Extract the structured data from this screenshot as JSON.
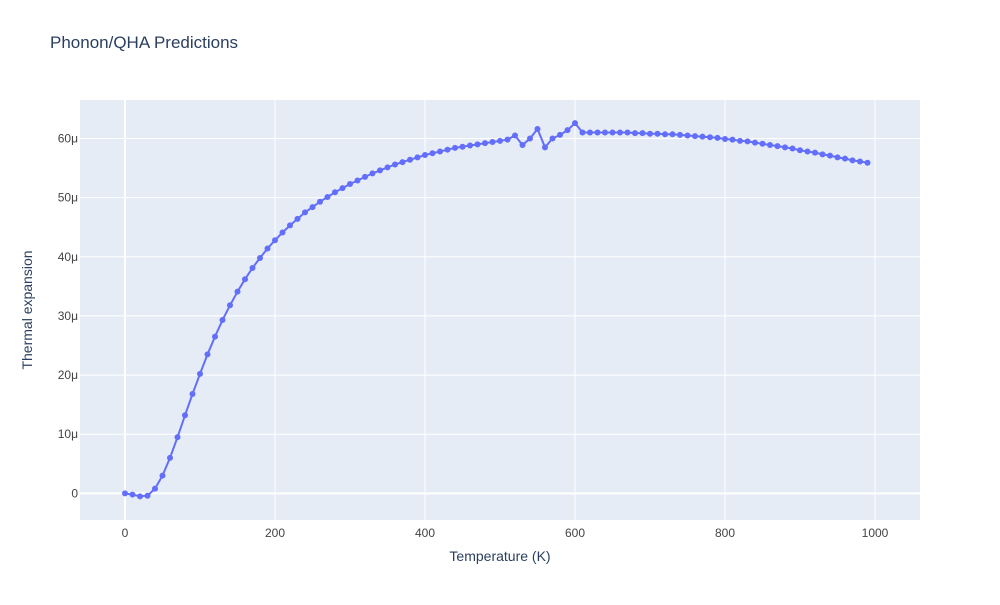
{
  "chart_data": {
    "type": "line",
    "title": "Phonon/QHA Predictions",
    "xlabel": "Temperature (K)",
    "ylabel": "Thermal expansion",
    "xlim": [
      -60,
      1060
    ],
    "ylim": [
      -4.5,
      66.5
    ],
    "x_ticks": [
      0,
      200,
      400,
      600,
      800,
      1000
    ],
    "x_tick_labels": [
      "0",
      "200",
      "400",
      "600",
      "800",
      "1000"
    ],
    "y_ticks": [
      0,
      10,
      20,
      30,
      40,
      50,
      60
    ],
    "y_tick_labels": [
      "0",
      "10μ",
      "20μ",
      "30μ",
      "40μ",
      "50μ",
      "60μ"
    ],
    "y_units": "μ (×1e-6)",
    "grid": true,
    "legend": "none",
    "colors": {
      "line": "#636efa",
      "plot_bg": "#e5ecf6",
      "grid": "#ffffff",
      "text": "#2a3f5f",
      "tick_text": "#444444"
    },
    "series": [
      {
        "x": [
          0,
          10,
          20,
          30,
          40,
          50,
          60,
          70,
          80,
          90,
          100,
          110,
          120,
          130,
          140,
          150,
          160,
          170,
          180,
          190,
          200,
          210,
          220,
          230,
          240,
          250,
          260,
          270,
          280,
          290,
          300,
          310,
          320,
          330,
          340,
          350,
          360,
          370,
          380,
          390,
          400,
          410,
          420,
          430,
          440,
          450,
          460,
          470,
          480,
          490,
          500,
          510,
          520,
          530,
          540,
          550,
          560,
          570,
          580,
          590,
          600,
          610,
          620,
          630,
          640,
          650,
          660,
          670,
          680,
          690,
          700,
          710,
          720,
          730,
          740,
          750,
          760,
          770,
          780,
          790,
          800,
          810,
          820,
          830,
          840,
          850,
          860,
          870,
          880,
          890,
          900,
          910,
          920,
          930,
          940,
          950,
          960,
          970,
          980,
          990
        ],
        "values": [
          0,
          -0.2,
          -0.5,
          -0.4,
          0.8,
          3.0,
          6.0,
          9.5,
          13.2,
          16.8,
          20.2,
          23.5,
          26.5,
          29.3,
          31.8,
          34.1,
          36.2,
          38.1,
          39.8,
          41.4,
          42.8,
          44.1,
          45.3,
          46.4,
          47.5,
          48.4,
          49.3,
          50.1,
          50.9,
          51.6,
          52.3,
          52.9,
          53.5,
          54.1,
          54.6,
          55.1,
          55.6,
          56.0,
          56.4,
          56.8,
          57.2,
          57.5,
          57.8,
          58.1,
          58.4,
          58.6,
          58.8,
          59.0,
          59.2,
          59.4,
          59.6,
          59.8,
          60.5,
          58.9,
          60.0,
          61.6,
          58.5,
          60.0,
          60.6,
          61.4,
          62.6,
          61.0,
          61.0,
          61.0,
          61.0,
          61.0,
          61.0,
          61.0,
          60.9,
          60.9,
          60.8,
          60.8,
          60.7,
          60.7,
          60.6,
          60.5,
          60.4,
          60.3,
          60.2,
          60.1,
          59.9,
          59.8,
          59.6,
          59.5,
          59.3,
          59.1,
          58.9,
          58.7,
          58.5,
          58.3,
          58.0,
          57.8,
          57.6,
          57.3,
          57.1,
          56.8,
          56.6,
          56.3,
          56.1,
          55.9
        ]
      }
    ]
  }
}
